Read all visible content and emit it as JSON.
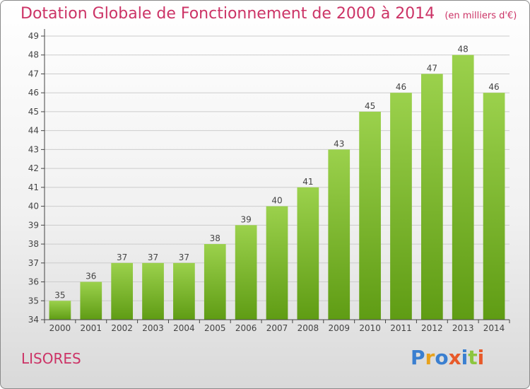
{
  "header": {
    "title": "Dotation Globale de Fonctionnement de 2000 à 2014",
    "unit": "(en milliers d'€)"
  },
  "footer": {
    "commune": "LISORES",
    "logo_text": "Proxiti"
  },
  "colors": {
    "title": "#cc3366",
    "bar_light": "#9bd14c",
    "bar_dark": "#5f9c14",
    "axis": "#444444",
    "grid": "#cccccc",
    "logo_letters": [
      "#3a7fd0",
      "#e8a21c",
      "#3a7fd0",
      "#e85a2a",
      "#3a7fd0",
      "#8cc63f",
      "#e85a2a"
    ]
  },
  "chart_data": {
    "type": "bar",
    "title": "Dotation Globale de Fonctionnement de 2000 à 2014",
    "subtitle": "(en milliers d'€)",
    "xlabel": "",
    "ylabel": "",
    "categories": [
      "2000",
      "2001",
      "2002",
      "2003",
      "2004",
      "2005",
      "2006",
      "2007",
      "2008",
      "2009",
      "2010",
      "2011",
      "2012",
      "2013",
      "2014"
    ],
    "values": [
      35,
      36,
      37,
      37,
      37,
      38,
      39,
      40,
      41,
      43,
      45,
      46,
      47,
      48,
      46
    ],
    "ylim": [
      34,
      49
    ],
    "yticks": [
      34,
      35,
      36,
      37,
      38,
      39,
      40,
      41,
      42,
      43,
      44,
      45,
      46,
      47,
      48,
      49
    ],
    "grid": true,
    "data_labels": true
  }
}
